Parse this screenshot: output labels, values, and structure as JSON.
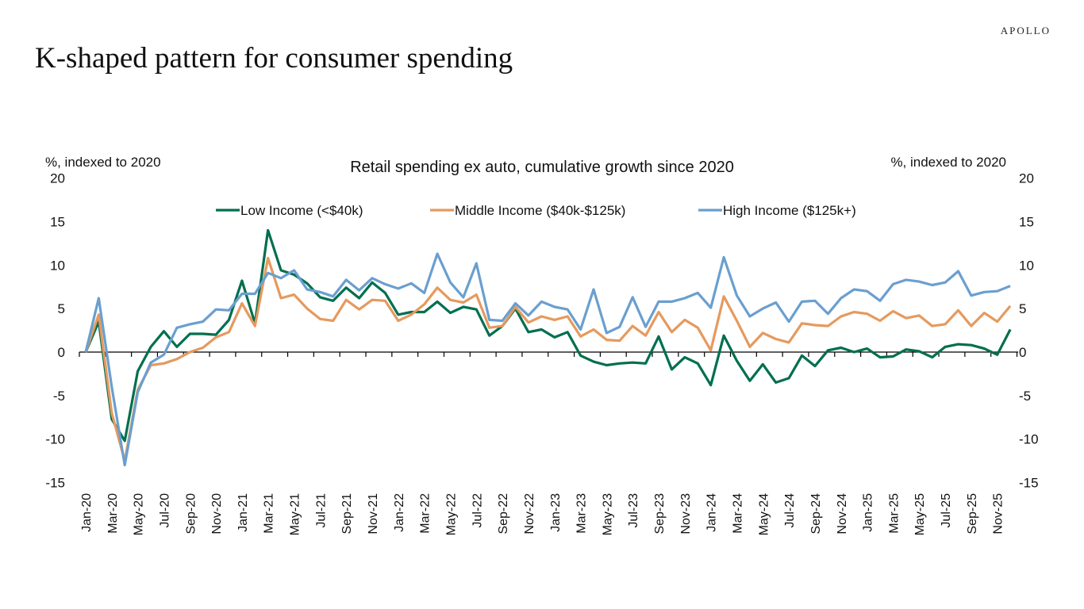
{
  "header": {
    "title": "K-shaped pattern for consumer spending",
    "logo": "APOLLO"
  },
  "chart_data": {
    "type": "line",
    "title": "Retail spending ex auto, cumulative growth since 2020",
    "ylabel_left": "%, indexed to 2020",
    "ylabel_right": "%, indexed to 2020",
    "ylim": [
      -15,
      20
    ],
    "yticks": [
      20,
      15,
      10,
      5,
      0,
      -5,
      -10,
      -15
    ],
    "legend_position": "top",
    "grid": false,
    "x": [
      "Jan-20",
      "Feb-20",
      "Mar-20",
      "Apr-20",
      "May-20",
      "Jun-20",
      "Jul-20",
      "Aug-20",
      "Sep-20",
      "Oct-20",
      "Nov-20",
      "Dec-20",
      "Jan-21",
      "Feb-21",
      "Mar-21",
      "Apr-21",
      "May-21",
      "Jun-21",
      "Jul-21",
      "Aug-21",
      "Sep-21",
      "Oct-21",
      "Nov-21",
      "Dec-21",
      "Jan-22",
      "Feb-22",
      "Mar-22",
      "Apr-22",
      "May-22",
      "Jun-22",
      "Jul-22",
      "Aug-22",
      "Sep-22",
      "Oct-22",
      "Nov-22",
      "Dec-22",
      "Jan-23",
      "Feb-23",
      "Mar-23",
      "Apr-23",
      "May-23",
      "Jun-23",
      "Jul-23",
      "Aug-23",
      "Sep-23",
      "Oct-23",
      "Nov-23",
      "Dec-23",
      "Jan-24",
      "Feb-24",
      "Mar-24",
      "Apr-24",
      "May-24",
      "Jun-24",
      "Jul-24",
      "Aug-24",
      "Sep-24",
      "Oct-24",
      "Nov-24",
      "Dec-24",
      "Jan-25",
      "Feb-25",
      "Mar-25",
      "Apr-25",
      "May-25",
      "Jun-25",
      "Jul-25",
      "Aug-25",
      "Sep-25",
      "Oct-25",
      "Nov-25",
      "Dec-25"
    ],
    "xtick_labels": [
      "Jan-20",
      "Mar-20",
      "May-20",
      "Jul-20",
      "Sep-20",
      "Nov-20",
      "Jan-21",
      "Mar-21",
      "May-21",
      "Jul-21",
      "Sep-21",
      "Nov-21",
      "Jan-22",
      "Mar-22",
      "May-22",
      "Jul-22",
      "Sep-22",
      "Nov-22",
      "Jan-23",
      "Mar-23",
      "May-23",
      "Jul-23",
      "Sep-23",
      "Nov-23",
      "Jan-24",
      "Mar-24",
      "May-24",
      "Jul-24",
      "Sep-24",
      "Nov-24",
      "Jan-25",
      "Mar-25",
      "May-25",
      "Jul-25",
      "Sep-25",
      "Nov-25"
    ],
    "series": [
      {
        "name": "Low Income (<$40k)",
        "color": "#006f4f",
        "values": [
          0,
          3.5,
          -7.7,
          -10.2,
          -2.2,
          0.6,
          2.4,
          0.6,
          2.1,
          2.1,
          2.0,
          3.7,
          8.2,
          3.3,
          14.0,
          9.4,
          8.9,
          7.9,
          6.3,
          5.9,
          7.4,
          6.2,
          8.0,
          6.8,
          4.3,
          4.6,
          4.6,
          5.8,
          4.5,
          5.2,
          4.9,
          1.9,
          3.0,
          5.0,
          2.3,
          2.6,
          1.7,
          2.3,
          -0.4,
          -1.1,
          -1.5,
          -1.3,
          -1.2,
          -1.3,
          1.8,
          -2.0,
          -0.6,
          -1.3,
          -3.8,
          1.9,
          -1.0,
          -3.3,
          -1.4,
          -3.5,
          -3.0,
          -0.4,
          -1.6,
          0.2,
          0.5,
          0.0,
          0.4,
          -0.6,
          -0.5,
          0.3,
          0.1,
          -0.6,
          0.6,
          0.9,
          0.8,
          0.4,
          -0.3,
          2.6
        ]
      },
      {
        "name": "Middle Income ($40k-$125k)",
        "color": "#e59a5e",
        "values": [
          0,
          4.3,
          -7.0,
          -12.5,
          -4.3,
          -1.5,
          -1.3,
          -0.8,
          0,
          0.5,
          1.7,
          2.3,
          5.6,
          3.0,
          10.8,
          6.2,
          6.6,
          5.0,
          3.8,
          3.6,
          6.0,
          4.9,
          6.0,
          5.9,
          3.6,
          4.3,
          5.5,
          7.4,
          6.0,
          5.7,
          6.6,
          2.8,
          3.0,
          5.2,
          3.4,
          4.1,
          3.7,
          4.1,
          1.8,
          2.6,
          1.4,
          1.3,
          3.0,
          1.9,
          4.6,
          2.3,
          3.7,
          2.8,
          0.2,
          6.4,
          3.6,
          0.6,
          2.2,
          1.5,
          1.1,
          3.3,
          3.1,
          3.0,
          4.1,
          4.6,
          4.4,
          3.6,
          4.7,
          3.9,
          4.2,
          3.0,
          3.2,
          4.8,
          3.0,
          4.5,
          3.5,
          5.3
        ]
      },
      {
        "name": "High Income ($125k+)",
        "color": "#6a9fcf",
        "values": [
          0,
          6.2,
          -4.0,
          -13.0,
          -4.6,
          -1.2,
          -0.3,
          2.8,
          3.2,
          3.5,
          4.9,
          4.8,
          6.7,
          6.7,
          9.1,
          8.5,
          9.4,
          7.2,
          6.9,
          6.4,
          8.3,
          7.1,
          8.5,
          7.8,
          7.3,
          7.9,
          6.8,
          11.3,
          8.0,
          6.3,
          10.2,
          3.7,
          3.6,
          5.6,
          4.2,
          5.8,
          5.2,
          4.9,
          2.6,
          7.2,
          2.2,
          2.9,
          6.3,
          2.9,
          5.8,
          5.8,
          6.2,
          6.8,
          5.1,
          10.9,
          6.5,
          4.1,
          5.0,
          5.7,
          3.5,
          5.8,
          5.9,
          4.4,
          6.2,
          7.2,
          7.0,
          5.9,
          7.8,
          8.3,
          8.1,
          7.7,
          8.0,
          9.3,
          6.5,
          6.9,
          7.0,
          7.6
        ]
      }
    ]
  }
}
